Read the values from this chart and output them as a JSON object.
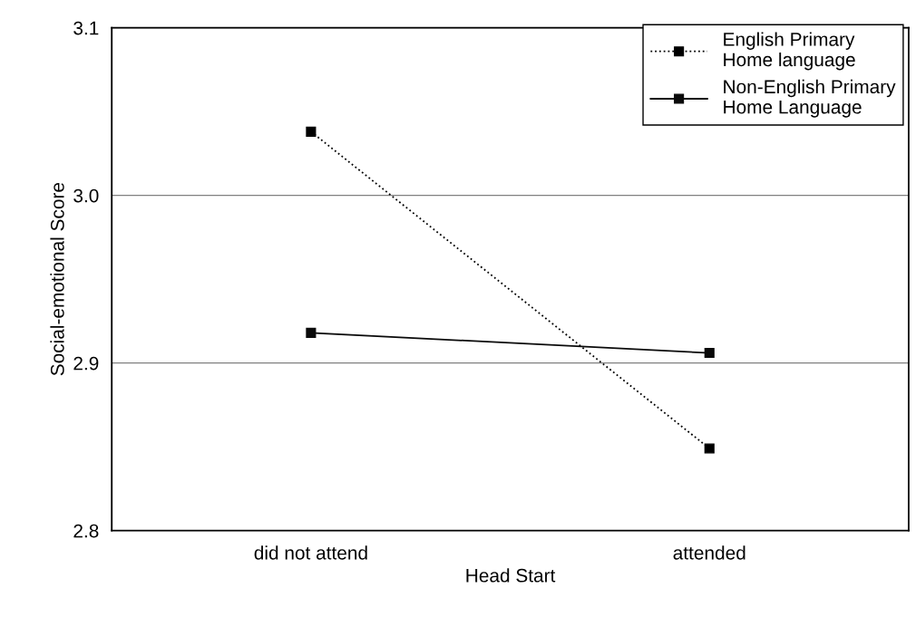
{
  "chart_data": {
    "type": "line",
    "xlabel": "Head Start",
    "ylabel": "Social-emotional Score",
    "categories": [
      "did not attend",
      "attended"
    ],
    "series": [
      {
        "name": "English Primary\nHome language",
        "color": "#000000",
        "values": [
          3.038,
          2.849
        ],
        "line_style": "dotted"
      },
      {
        "name": "Non-English Primary\nHome Language",
        "color": "#0a0a0a",
        "values": [
          2.918,
          2.906
        ],
        "line_style": "solid"
      }
    ],
    "ylim": [
      2.8,
      3.1
    ],
    "yticks": [
      {
        "value": 2.8,
        "label": "2.8"
      },
      {
        "value": 2.9,
        "label": "2.9"
      },
      {
        "value": 3.0,
        "label": "3.0"
      },
      {
        "value": 3.1,
        "label": "3.1"
      }
    ],
    "grid": "y",
    "legend": "top right",
    "marker": "square"
  }
}
